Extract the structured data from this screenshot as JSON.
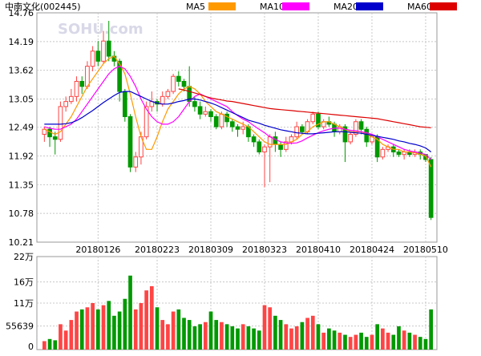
{
  "header": {
    "title": "中南文化(002445)",
    "watermark": "SOHU.com"
  },
  "legend": [
    {
      "label": "MA5",
      "color": "#ff9900"
    },
    {
      "label": "MA10",
      "color": "#ff00ff"
    },
    {
      "label": "MA20",
      "color": "#0000cc"
    },
    {
      "label": "MA60",
      "color": "#dd0000"
    }
  ],
  "colors": {
    "up": "#ff4444",
    "down": "#009900",
    "grid": "#c8c8c8",
    "frame": "#999999"
  },
  "chart_data": {
    "type": "candlestick",
    "title": "中南文化(002445)",
    "price_axis": {
      "ticks": [
        "14.76",
        "14.19",
        "13.62",
        "13.05",
        "12.49",
        "11.92",
        "11.35",
        "10.78",
        "10.21"
      ],
      "range": [
        10.21,
        14.76
      ]
    },
    "volume_axis": {
      "ticks": [
        "22万",
        "16万",
        "11万",
        "55639",
        "0"
      ],
      "range": [
        0,
        220000
      ]
    },
    "date_labels": [
      {
        "label": "20180126",
        "index": 10
      },
      {
        "label": "20180223",
        "index": 21
      },
      {
        "label": "20180309",
        "index": 31
      },
      {
        "label": "20180323",
        "index": 41
      },
      {
        "label": "20180410",
        "index": 51
      },
      {
        "label": "20180424",
        "index": 61
      },
      {
        "label": "20180510",
        "index": 71
      }
    ],
    "candles": [
      [
        12.35,
        12.45,
        12.2,
        12.5
      ],
      [
        12.45,
        12.3,
        12.1,
        12.5
      ],
      [
        12.3,
        12.25,
        11.95,
        12.4
      ],
      [
        12.25,
        12.9,
        12.2,
        13.0
      ],
      [
        12.9,
        13.0,
        12.8,
        13.1
      ],
      [
        13.0,
        13.1,
        12.95,
        13.25
      ],
      [
        13.1,
        13.4,
        13.0,
        13.5
      ],
      [
        13.4,
        13.3,
        13.15,
        13.5
      ],
      [
        13.3,
        13.7,
        13.25,
        13.8
      ],
      [
        13.7,
        14.0,
        13.6,
        14.1
      ],
      [
        14.0,
        13.8,
        13.7,
        14.2
      ],
      [
        13.8,
        14.2,
        13.75,
        14.4
      ],
      [
        14.2,
        13.9,
        13.8,
        14.6
      ],
      [
        13.9,
        13.8,
        13.7,
        14.0
      ],
      [
        13.8,
        13.2,
        13.0,
        13.85
      ],
      [
        13.2,
        12.7,
        12.6,
        13.25
      ],
      [
        12.7,
        11.7,
        11.6,
        12.75
      ],
      [
        11.7,
        11.9,
        11.6,
        12.0
      ],
      [
        11.9,
        12.3,
        11.75,
        12.4
      ],
      [
        12.3,
        12.9,
        12.25,
        13.0
      ],
      [
        12.9,
        13.0,
        12.8,
        13.2
      ],
      [
        13.0,
        12.95,
        12.8,
        13.05
      ],
      [
        12.95,
        13.1,
        12.9,
        13.2
      ],
      [
        13.1,
        13.2,
        13.05,
        13.25
      ],
      [
        13.2,
        13.5,
        13.15,
        13.55
      ],
      [
        13.5,
        13.4,
        13.3,
        13.6
      ],
      [
        13.4,
        13.3,
        13.2,
        13.45
      ],
      [
        13.3,
        13.0,
        12.9,
        13.7
      ],
      [
        13.0,
        12.9,
        12.8,
        13.1
      ],
      [
        12.9,
        12.75,
        12.65,
        13.0
      ],
      [
        12.75,
        12.8,
        12.7,
        12.9
      ],
      [
        12.8,
        12.7,
        12.6,
        12.85
      ],
      [
        12.7,
        12.5,
        12.45,
        12.75
      ],
      [
        12.5,
        12.75,
        12.45,
        12.8
      ],
      [
        12.75,
        12.6,
        12.5,
        12.8
      ],
      [
        12.6,
        12.5,
        12.4,
        12.65
      ],
      [
        12.5,
        12.45,
        12.3,
        12.55
      ],
      [
        12.45,
        12.5,
        12.35,
        12.6
      ],
      [
        12.5,
        12.3,
        12.2,
        12.55
      ],
      [
        12.3,
        12.2,
        12.1,
        12.35
      ],
      [
        12.2,
        12.0,
        11.95,
        12.25
      ],
      [
        12.0,
        12.1,
        11.3,
        12.15
      ],
      [
        12.1,
        12.3,
        11.4,
        12.35
      ],
      [
        12.3,
        12.15,
        12.0,
        12.4
      ],
      [
        12.15,
        12.05,
        11.9,
        12.2
      ],
      [
        12.05,
        12.2,
        12.0,
        12.3
      ],
      [
        12.2,
        12.3,
        12.15,
        12.35
      ],
      [
        12.3,
        12.5,
        12.25,
        12.6
      ],
      [
        12.5,
        12.4,
        12.35,
        12.55
      ],
      [
        12.4,
        12.6,
        12.35,
        12.65
      ],
      [
        12.6,
        12.75,
        12.55,
        12.8
      ],
      [
        12.75,
        12.5,
        12.45,
        12.8
      ],
      [
        12.5,
        12.6,
        12.45,
        12.65
      ],
      [
        12.6,
        12.55,
        12.5,
        12.7
      ],
      [
        12.55,
        12.4,
        12.3,
        12.6
      ],
      [
        12.4,
        12.5,
        12.35,
        12.55
      ],
      [
        12.5,
        12.2,
        11.8,
        12.55
      ],
      [
        12.2,
        12.35,
        12.15,
        12.4
      ],
      [
        12.35,
        12.6,
        12.3,
        12.65
      ],
      [
        12.6,
        12.45,
        12.35,
        12.65
      ],
      [
        12.45,
        12.2,
        12.1,
        12.5
      ],
      [
        12.2,
        12.3,
        12.15,
        12.35
      ],
      [
        12.3,
        11.9,
        11.8,
        12.35
      ],
      [
        11.9,
        12.05,
        11.85,
        12.1
      ],
      [
        12.05,
        12.1,
        12.0,
        12.15
      ],
      [
        12.1,
        12.0,
        11.9,
        12.15
      ],
      [
        12.0,
        11.95,
        11.9,
        12.05
      ],
      [
        11.95,
        12.0,
        11.85,
        12.05
      ],
      [
        12.0,
        11.95,
        11.9,
        12.05
      ],
      [
        11.95,
        12.0,
        11.9,
        12.05
      ],
      [
        12.0,
        11.95,
        11.85,
        12.05
      ],
      [
        11.95,
        11.85,
        11.8,
        11.95
      ],
      [
        11.85,
        10.7,
        10.65,
        11.9
      ]
    ],
    "ma5": [
      12.45,
      12.4,
      12.35,
      12.4,
      12.55,
      12.7,
      12.9,
      13.1,
      13.3,
      13.45,
      13.6,
      13.75,
      13.85,
      13.9,
      13.75,
      13.55,
      13.15,
      12.7,
      12.3,
      12.05,
      12.05,
      12.3,
      12.6,
      12.85,
      13.0,
      13.15,
      13.25,
      13.3,
      13.25,
      13.15,
      13.0,
      12.9,
      12.8,
      12.75,
      12.7,
      12.65,
      12.6,
      12.55,
      12.5,
      12.4,
      12.3,
      12.2,
      12.15,
      12.15,
      12.15,
      12.15,
      12.2,
      12.25,
      12.35,
      12.4,
      12.5,
      12.55,
      12.6,
      12.6,
      12.55,
      12.5,
      12.45,
      12.4,
      12.4,
      12.4,
      12.35,
      12.3,
      12.25,
      12.15,
      12.1,
      12.05,
      12.05,
      12.0,
      12.0,
      11.98,
      11.95,
      11.92,
      11.7
    ],
    "ma10": [
      12.5,
      12.47,
      12.45,
      12.45,
      12.5,
      12.55,
      12.65,
      12.8,
      12.95,
      13.1,
      13.25,
      13.4,
      13.55,
      13.65,
      13.7,
      13.65,
      13.5,
      13.3,
      13.05,
      12.85,
      12.7,
      12.6,
      12.55,
      12.55,
      12.6,
      12.7,
      12.85,
      13.0,
      13.1,
      13.15,
      13.1,
      13.05,
      13.0,
      12.95,
      12.9,
      12.8,
      12.72,
      12.65,
      12.6,
      12.52,
      12.45,
      12.38,
      12.3,
      12.25,
      12.2,
      12.18,
      12.17,
      12.18,
      12.22,
      12.28,
      12.33,
      12.38,
      12.42,
      12.45,
      12.47,
      12.47,
      12.45,
      12.43,
      12.42,
      12.4,
      12.38,
      12.35,
      12.3,
      12.25,
      12.2,
      12.15,
      12.1,
      12.05,
      12.02,
      12.0,
      11.98,
      11.95,
      11.85
    ],
    "ma20": [
      12.55,
      12.55,
      12.55,
      12.55,
      12.56,
      12.58,
      12.62,
      12.68,
      12.75,
      12.82,
      12.9,
      12.98,
      13.05,
      13.12,
      13.18,
      13.2,
      13.2,
      13.15,
      13.1,
      13.05,
      13.0,
      12.97,
      12.95,
      12.95,
      12.97,
      13.0,
      13.02,
      13.05,
      13.05,
      13.03,
      13.0,
      12.97,
      12.93,
      12.88,
      12.83,
      12.78,
      12.73,
      12.68,
      12.63,
      12.6,
      12.57,
      12.53,
      12.5,
      12.47,
      12.44,
      12.42,
      12.4,
      12.38,
      12.37,
      12.36,
      12.36,
      12.37,
      12.38,
      12.39,
      12.4,
      12.4,
      12.4,
      12.39,
      12.38,
      12.37,
      12.35,
      12.33,
      12.31,
      12.29,
      12.27,
      12.25,
      12.22,
      12.2,
      12.17,
      12.15,
      12.12,
      12.08,
      12.0
    ],
    "ma60": [
      null,
      null,
      null,
      null,
      null,
      null,
      null,
      null,
      null,
      null,
      null,
      null,
      null,
      null,
      null,
      null,
      null,
      null,
      null,
      null,
      null,
      null,
      null,
      null,
      null,
      13.25,
      13.23,
      13.2,
      13.17,
      13.14,
      13.1,
      13.07,
      13.05,
      13.03,
      13.01,
      13.0,
      12.98,
      12.96,
      12.94,
      12.92,
      12.9,
      12.88,
      12.86,
      12.85,
      12.84,
      12.83,
      12.82,
      12.81,
      12.8,
      12.79,
      12.78,
      12.77,
      12.76,
      12.75,
      12.74,
      12.73,
      12.72,
      12.71,
      12.7,
      12.69,
      12.68,
      12.67,
      12.66,
      12.64,
      12.62,
      12.6,
      12.58,
      12.56,
      12.54,
      12.52,
      12.5,
      12.49,
      12.48
    ],
    "volume": [
      20000,
      25000,
      22000,
      60000,
      45000,
      70000,
      90000,
      95000,
      100000,
      110000,
      95000,
      105000,
      115000,
      80000,
      90000,
      120000,
      175000,
      95000,
      110000,
      140000,
      150000,
      100000,
      70000,
      60000,
      90000,
      95000,
      75000,
      70000,
      55000,
      60000,
      65000,
      90000,
      70000,
      65000,
      60000,
      55000,
      50000,
      60000,
      55000,
      50000,
      45000,
      105000,
      100000,
      80000,
      70000,
      60000,
      50000,
      55000,
      65000,
      75000,
      80000,
      60000,
      40000,
      50000,
      45000,
      40000,
      35000,
      30000,
      35000,
      40000,
      30000,
      35000,
      60000,
      50000,
      40000,
      35000,
      55000,
      45000,
      40000,
      35000,
      30000,
      25000,
      95000
    ]
  }
}
